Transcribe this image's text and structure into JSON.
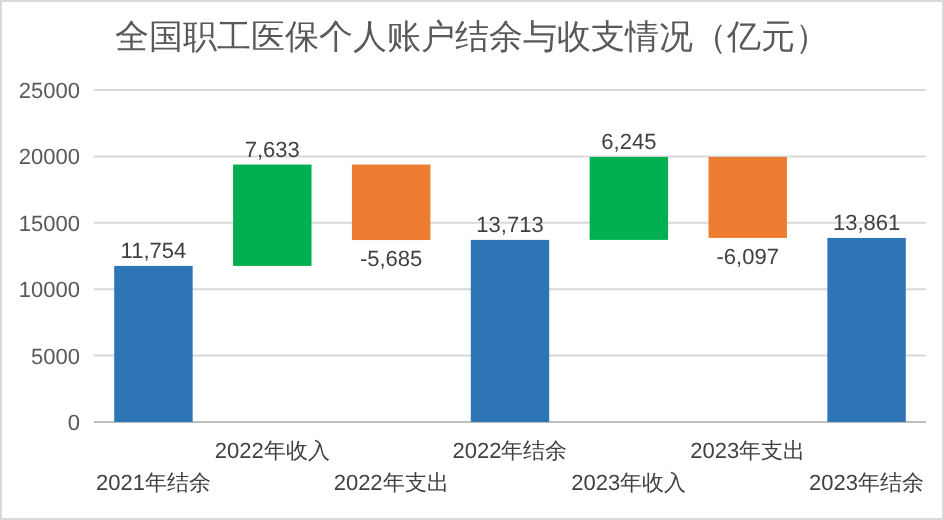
{
  "chart_data": {
    "type": "bar",
    "title": "全国职工医保个人账户结余与收支情况（亿元）",
    "categories": [
      "2021年结余",
      "2022年收入",
      "2022年支出",
      "2022年结余",
      "2023年收入",
      "2023年支出",
      "2023年结余"
    ],
    "values": [
      11754,
      7633,
      -5685,
      13713,
      6245,
      -6097,
      13861
    ],
    "base": [
      0,
      11754,
      19387,
      0,
      13713,
      19958,
      0
    ],
    "colors": [
      "#2e75b6",
      "#00b050",
      "#ed7d31",
      "#2e75b6",
      "#00b050",
      "#ed7d31",
      "#2e75b6"
    ],
    "value_labels": [
      "11,754",
      "7,633",
      "-5,685",
      "13,713",
      "6,245",
      "-6,097",
      "13,861"
    ],
    "ylim": [
      0,
      25000
    ],
    "yticks": [
      0,
      5000,
      10000,
      15000,
      20000,
      25000
    ],
    "grid": "y"
  }
}
